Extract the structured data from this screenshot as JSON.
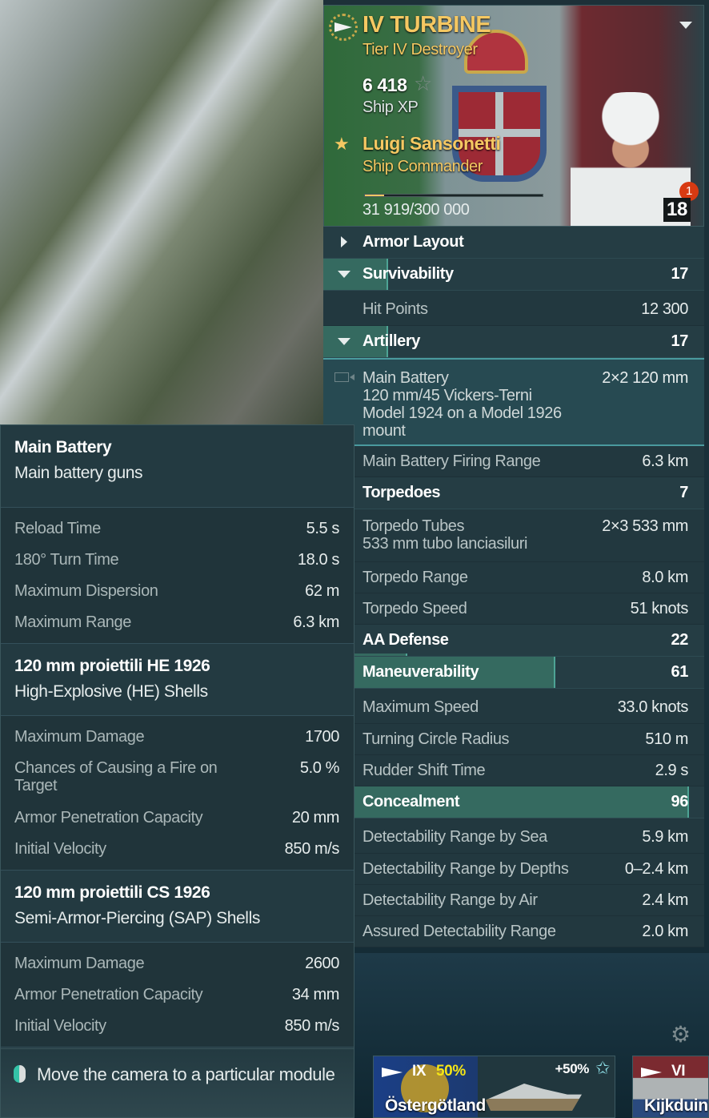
{
  "ship": {
    "name": "IV TURBINE",
    "type": "Tier IV Destroyer",
    "xp": "6 418",
    "xp_label": "Ship XP"
  },
  "commander": {
    "name": "Luigi Sansonetti",
    "role": "Ship Commander",
    "xp": "31 919",
    "xp_max": "/300 000",
    "progress": 0.106,
    "level": "18",
    "notification": "1"
  },
  "stats": [
    {
      "kind": "cat",
      "label": "Armor Layout",
      "collapsed": true
    },
    {
      "kind": "cat",
      "label": "Survivability",
      "value": "17",
      "fill": 17
    },
    {
      "kind": "stat",
      "label": "Hit Points",
      "value": "12 300"
    },
    {
      "kind": "cat",
      "label": "Artillery",
      "value": "17",
      "fill": 17
    },
    {
      "kind": "multi",
      "label": "Main Battery",
      "sub": "120 mm/45 Vickers-Terni Model 1924 on a Model 1926 mount",
      "value": "2×2  120 mm",
      "icon": "camera-icon"
    },
    {
      "kind": "stat",
      "label": "Main Battery Firing Range",
      "value": "6.3 km"
    },
    {
      "kind": "cat",
      "label": "Torpedoes",
      "value": "7",
      "fill": 7
    },
    {
      "kind": "stat2",
      "label": "Torpedo Tubes",
      "sub": "533 mm tubo lanciasiluri",
      "value": "2×3  533 mm"
    },
    {
      "kind": "stat",
      "label": "Torpedo Range",
      "value": "8.0 km"
    },
    {
      "kind": "stat",
      "label": "Torpedo Speed",
      "value": "51 knots"
    },
    {
      "kind": "cat",
      "label": "AA Defense",
      "value": "22",
      "fill": 22,
      "thin": true
    },
    {
      "kind": "cat",
      "label": "Maneuverability",
      "value": "61",
      "fill": 61
    },
    {
      "kind": "stat",
      "label": "Maximum Speed",
      "value": "33.0 knots"
    },
    {
      "kind": "stat",
      "label": "Turning Circle Radius",
      "value": "510 m"
    },
    {
      "kind": "stat",
      "label": "Rudder Shift Time",
      "value": "2.9 s"
    },
    {
      "kind": "cat",
      "label": "Concealment",
      "value": "96",
      "fill": 96
    },
    {
      "kind": "stat",
      "label": "Detectability Range by Sea",
      "value": "5.9 km"
    },
    {
      "kind": "stat",
      "label": "Detectability Range by Depths",
      "value": "0–2.4 km"
    },
    {
      "kind": "stat",
      "label": "Detectability Range by Air",
      "value": "2.4 km"
    },
    {
      "kind": "stat",
      "label": "Assured Detectability Range",
      "value": "2.0 km"
    }
  ],
  "tooltip": {
    "sections": [
      {
        "title": "Main Battery",
        "subtitle": "Main battery guns",
        "rows": [
          {
            "label": "Reload Time",
            "value": "5.5 s"
          },
          {
            "label": "180° Turn Time",
            "value": "18.0 s"
          },
          {
            "label": "Maximum Dispersion",
            "value": "62 m"
          },
          {
            "label": "Maximum Range",
            "value": "6.3 km"
          }
        ]
      },
      {
        "title": "120 mm proiettili HE 1926",
        "subtitle": "High-Explosive (HE) Shells",
        "rows": [
          {
            "label": "Maximum Damage",
            "value": "1700"
          },
          {
            "label": "Chances of Causing a Fire on Target",
            "value": "5.0 %"
          },
          {
            "label": "Armor Penetration Capacity",
            "value": "20 mm"
          },
          {
            "label": "Initial Velocity",
            "value": "850 m/s"
          }
        ]
      },
      {
        "title": "120 mm proiettili CS 1926",
        "subtitle": "Semi-Armor-Piercing (SAP) Shells",
        "rows": [
          {
            "label": "Maximum Damage",
            "value": "2600"
          },
          {
            "label": "Armor Penetration Capacity",
            "value": "34 mm"
          },
          {
            "label": "Initial Velocity",
            "value": "850 m/s"
          }
        ]
      }
    ],
    "hint": "Move the camera to a particular module"
  },
  "carousel": [
    {
      "tier": "IX",
      "bonus_pct": "50%",
      "xp_bonus": "+50%",
      "name": "Östergötland"
    },
    {
      "tier": "VI",
      "name": "Kijkduin"
    }
  ],
  "colors": {
    "accent_gold": "#f5c862",
    "stat_fill": "#356a60",
    "highlight_border": "#4a9a9e"
  }
}
